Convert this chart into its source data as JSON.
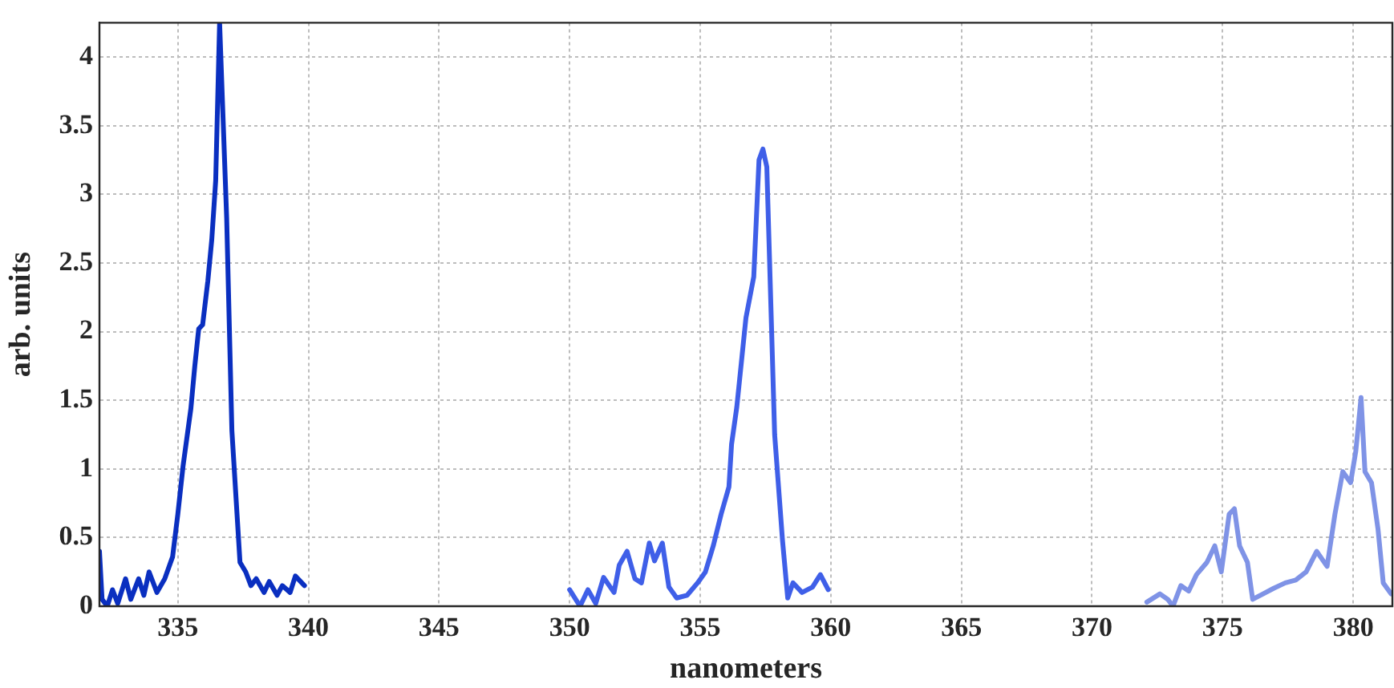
{
  "chart_data": {
    "type": "line",
    "xlabel": "nanometers",
    "ylabel": "arb. units",
    "xlim": [
      332,
      381.5
    ],
    "ylim": [
      0,
      4.25
    ],
    "xticks": [
      335,
      340,
      345,
      350,
      355,
      360,
      365,
      370,
      375,
      380
    ],
    "yticks": [
      0,
      0.5,
      1,
      1.5,
      2,
      2.5,
      3,
      3.5,
      4
    ],
    "grid": true,
    "line_style": "solid",
    "marker": "none",
    "series": [
      {
        "color": "#0a2fc0",
        "x": [
          332.0,
          332.1,
          332.3,
          332.5,
          332.7,
          333.0,
          333.2,
          333.5,
          333.7,
          333.9,
          334.2,
          334.5,
          334.8,
          335.0,
          335.2,
          335.5,
          335.65,
          335.8,
          335.95,
          336.15,
          336.3,
          336.45,
          336.6,
          336.87,
          337.07,
          337.38,
          337.6,
          337.8,
          338.0,
          338.3,
          338.5,
          338.8,
          339.0,
          339.3,
          339.5,
          339.85
        ],
        "values": [
          0.4,
          0.05,
          0.0,
          0.12,
          0.02,
          0.2,
          0.05,
          0.2,
          0.08,
          0.25,
          0.1,
          0.2,
          0.36,
          0.67,
          1.02,
          1.44,
          1.75,
          2.02,
          2.05,
          2.37,
          2.67,
          3.1,
          4.25,
          2.83,
          1.28,
          0.32,
          0.25,
          0.15,
          0.2,
          0.1,
          0.18,
          0.08,
          0.15,
          0.1,
          0.22,
          0.15
        ]
      },
      {
        "color": "#3f5fe8",
        "x": [
          350.0,
          350.4,
          350.7,
          351.0,
          351.3,
          351.7,
          351.9,
          352.2,
          352.5,
          352.75,
          353.05,
          353.25,
          353.55,
          353.8,
          354.1,
          354.5,
          354.9,
          355.2,
          355.5,
          355.8,
          356.1,
          356.2,
          356.4,
          356.75,
          357.05,
          357.25,
          357.4,
          357.55,
          357.85,
          358.15,
          358.35,
          358.55,
          358.9,
          359.3,
          359.6,
          359.9
        ],
        "values": [
          0.12,
          0.0,
          0.12,
          0.02,
          0.21,
          0.1,
          0.3,
          0.4,
          0.2,
          0.17,
          0.46,
          0.33,
          0.46,
          0.14,
          0.06,
          0.08,
          0.17,
          0.25,
          0.44,
          0.67,
          0.87,
          1.18,
          1.45,
          2.1,
          2.4,
          3.25,
          3.33,
          3.2,
          1.25,
          0.48,
          0.06,
          0.17,
          0.1,
          0.14,
          0.23,
          0.12
        ]
      },
      {
        "color": "#7f93e6",
        "x": [
          372.1,
          372.6,
          372.9,
          373.1,
          373.4,
          373.7,
          374.0,
          374.4,
          374.7,
          374.95,
          375.25,
          375.45,
          375.65,
          375.95,
          376.15,
          376.55,
          376.95,
          377.4,
          377.8,
          378.2,
          378.6,
          379.0,
          379.3,
          379.6,
          379.9,
          380.1,
          380.3,
          380.45,
          380.7,
          380.95,
          381.15,
          381.45
        ],
        "values": [
          0.03,
          0.09,
          0.05,
          0.0,
          0.15,
          0.11,
          0.23,
          0.32,
          0.44,
          0.25,
          0.67,
          0.71,
          0.44,
          0.32,
          0.05,
          0.09,
          0.13,
          0.17,
          0.19,
          0.25,
          0.4,
          0.29,
          0.67,
          0.98,
          0.9,
          1.13,
          1.52,
          0.98,
          0.9,
          0.56,
          0.17,
          0.09
        ]
      }
    ]
  }
}
